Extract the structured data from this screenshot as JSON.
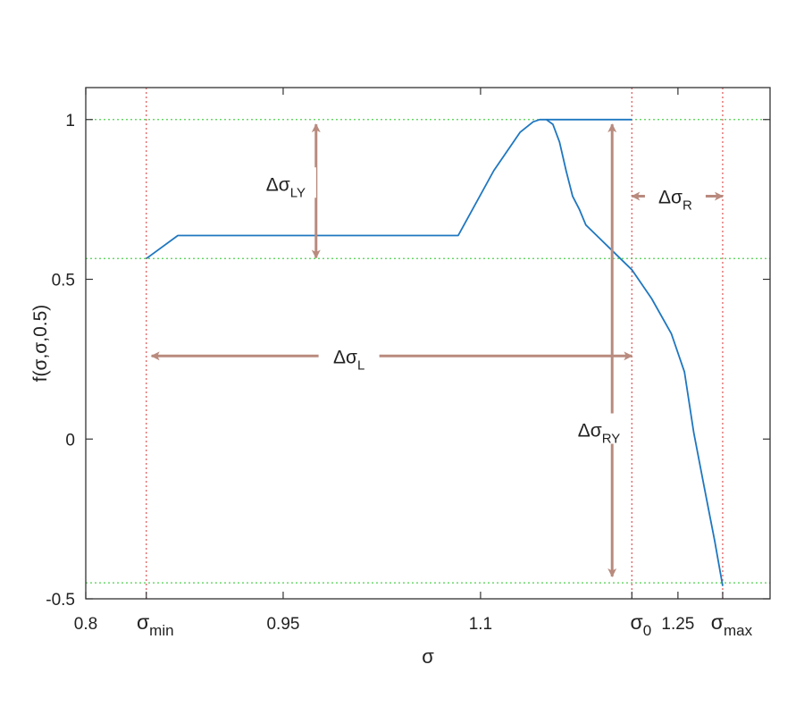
{
  "colors": {
    "curve": "#1f77c0",
    "vline": "#e06060",
    "hline": "#4fd14f",
    "arrow": "#b98a7e",
    "axis": "#333333"
  },
  "chart_data": {
    "type": "line",
    "xlabel": "σ",
    "ylabel": "f(σ,σ,0.5)",
    "xlim": [
      0.8,
      1.32
    ],
    "ylim": [
      -0.5,
      1.1
    ],
    "grid": false,
    "x_ticks": [
      {
        "value": 0.8,
        "label": "0.8"
      },
      {
        "value": 0.95,
        "label": "0.95"
      },
      {
        "value": 1.1,
        "label": "1.1"
      },
      {
        "value": 1.25,
        "label": "1.25"
      }
    ],
    "y_ticks": [
      {
        "value": 1,
        "label": "1"
      },
      {
        "value": 0.5,
        "label": "0.5"
      },
      {
        "value": 0,
        "label": "0"
      },
      {
        "value": -0.5,
        "label": "-0.5"
      }
    ],
    "special_ticks": [
      {
        "value": 0.846,
        "label": "σ",
        "sub": "min"
      },
      {
        "value": 1.215,
        "label": "σ",
        "sub": "0"
      },
      {
        "value": 1.284,
        "label": "σ",
        "sub": "max"
      }
    ],
    "vertical_lines": [
      0.846,
      1.215,
      1.284
    ],
    "horizontal_lines": [
      1.0,
      0.565,
      -0.45
    ],
    "series": [
      {
        "x": [
          0.846,
          0.87,
          0.9,
          0.95,
          1.0,
          1.05,
          1.083,
          1.11,
          1.13,
          1.14,
          1.145,
          1.15,
          1.155,
          1.16,
          1.165,
          1.17,
          1.175,
          1.18,
          1.19,
          1.2,
          1.215,
          1.23,
          1.245,
          1.255,
          1.262,
          1.27,
          1.278,
          1.284
        ],
        "y": [
          0.565,
          0.637,
          0.637,
          0.637,
          0.637,
          0.637,
          0.637,
          0.84,
          0.96,
          0.993,
          1.0,
          1.0,
          0.985,
          0.93,
          0.84,
          0.76,
          0.72,
          0.67,
          0.63,
          0.59,
          0.53,
          0.44,
          0.33,
          0.21,
          0.02,
          -0.15,
          -0.32,
          -0.46
        ]
      },
      {
        "x": [
          1.15,
          1.215
        ],
        "y": [
          1.0,
          1.0
        ]
      }
    ],
    "annotations": [
      {
        "label": "Δσ",
        "sub": "LY",
        "arrow": "vertical",
        "at": 0.975,
        "from": 0.985,
        "to": 0.567,
        "label_y": 0.8,
        "label_x": 0.952
      },
      {
        "label": "Δσ",
        "sub": "R",
        "arrow": "horizontal",
        "at": 0.76,
        "from": 1.215,
        "to": 1.284,
        "label_x": 1.248,
        "label_y": 0.76
      },
      {
        "label": "Δσ",
        "sub": "L",
        "arrow": "horizontal",
        "at": 0.26,
        "from": 0.85,
        "to": 1.215,
        "label_x": 1.0,
        "label_y": 0.26
      },
      {
        "label": "Δσ",
        "sub": "RY",
        "arrow": "vertical",
        "at": 1.2,
        "from": 0.985,
        "to": -0.43,
        "label_x": 1.19,
        "label_y": 0.03
      }
    ]
  }
}
